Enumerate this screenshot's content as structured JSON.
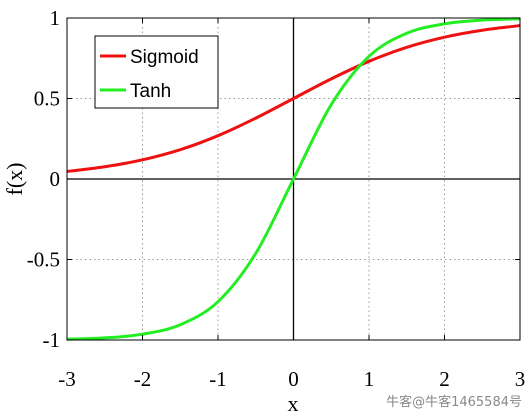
{
  "chart_data": {
    "type": "line",
    "xlabel": "x",
    "ylabel": "f(x)",
    "xlim": [
      -3,
      3
    ],
    "ylim": [
      -1,
      1
    ],
    "x_ticks": [
      -3,
      -2,
      -1,
      0,
      1,
      2,
      3
    ],
    "x_tick_labels": [
      "-3",
      "-2",
      "-1",
      "0",
      "1",
      "2",
      "3"
    ],
    "y_ticks": [
      -1,
      -0.5,
      0,
      0.5,
      1
    ],
    "y_tick_labels": [
      "-1",
      "-0.5",
      "0",
      "0.5",
      "1"
    ],
    "grid": true,
    "legend_position": "top-left",
    "x": [
      -3,
      -2.5,
      -2,
      -1.5,
      -1,
      -0.5,
      0,
      0.5,
      1,
      1.5,
      2,
      2.5,
      3
    ],
    "series": [
      {
        "name": "Sigmoid",
        "color": "#ee1111",
        "values": [
          0.047,
          0.076,
          0.119,
          0.182,
          0.269,
          0.378,
          0.5,
          0.622,
          0.731,
          0.818,
          0.881,
          0.924,
          0.953
        ]
      },
      {
        "name": "Tanh",
        "color": "#22ee22",
        "values": [
          -0.995,
          -0.987,
          -0.964,
          -0.905,
          -0.762,
          -0.462,
          0,
          0.462,
          0.762,
          0.905,
          0.964,
          0.987,
          0.995
        ]
      }
    ]
  },
  "watermark": "牛客@牛客1465584号"
}
